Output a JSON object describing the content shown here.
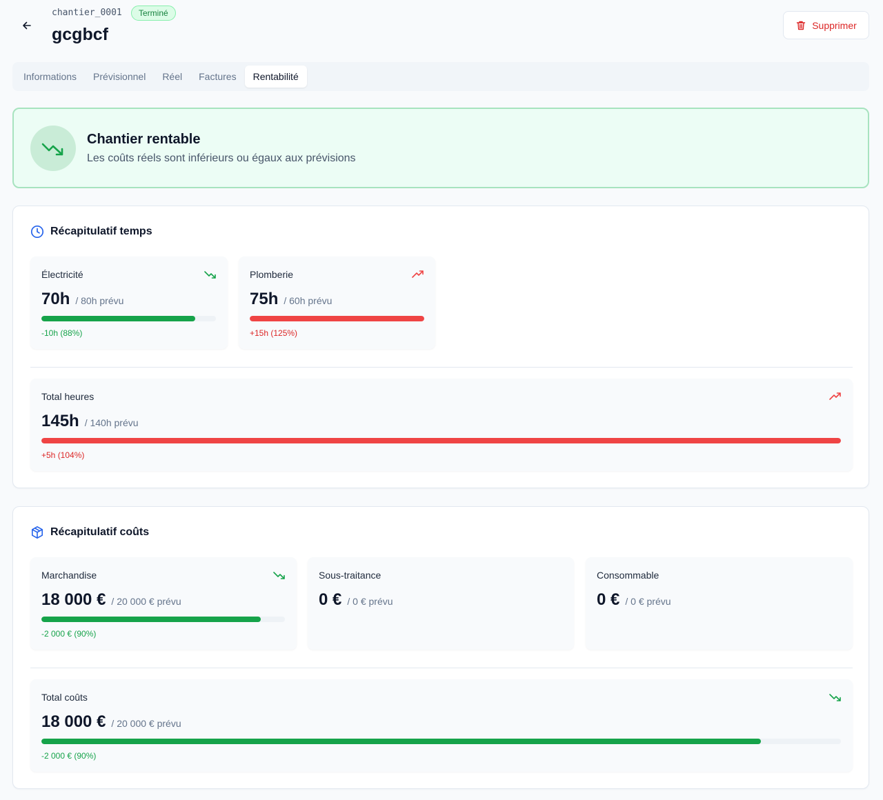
{
  "header": {
    "code": "chantier_0001",
    "status": "Terminé",
    "title": "gcgbcf",
    "delete_label": "Supprimer"
  },
  "tabs": [
    {
      "label": "Informations",
      "active": false
    },
    {
      "label": "Prévisionnel",
      "active": false
    },
    {
      "label": "Réel",
      "active": false
    },
    {
      "label": "Factures",
      "active": false
    },
    {
      "label": "Rentabilité",
      "active": true
    }
  ],
  "banner": {
    "title": "Chantier rentable",
    "subtitle": "Les coûts réels sont inférieurs ou égaux aux prévisions"
  },
  "time_summary": {
    "title": "Récapitulatif temps",
    "items": [
      {
        "label": "Électricité",
        "value": "70h",
        "planned": "/ 80h prévu",
        "diff": "-10h (88%)",
        "ratio": 0.88,
        "trend": "down"
      },
      {
        "label": "Plomberie",
        "value": "75h",
        "planned": "/ 60h prévu",
        "diff": "+15h (125%)",
        "ratio": 1.0,
        "trend": "up"
      }
    ],
    "total": {
      "label": "Total heures",
      "value": "145h",
      "planned": "/ 140h prévu",
      "diff": "+5h (104%)",
      "ratio": 1.0,
      "trend": "up"
    }
  },
  "cost_summary": {
    "title": "Récapitulatif coûts",
    "items": [
      {
        "label": "Marchandise",
        "value": "18 000 €",
        "planned": "/ 20 000 € prévu",
        "diff": "-2 000 € (90%)",
        "ratio": 0.9,
        "trend": "down"
      },
      {
        "label": "Sous-traitance",
        "value": "0 €",
        "planned": "/ 0 € prévu"
      },
      {
        "label": "Consommable",
        "value": "0 €",
        "planned": "/ 0 € prévu"
      }
    ],
    "total": {
      "label": "Total coûts",
      "value": "18 000 €",
      "planned": "/ 20 000 € prévu",
      "diff": "-2 000 € (90%)",
      "ratio": 0.9,
      "trend": "down"
    }
  },
  "colors": {
    "good": "#16a34a",
    "bad": "#ef4444",
    "accent": "#2563eb"
  }
}
